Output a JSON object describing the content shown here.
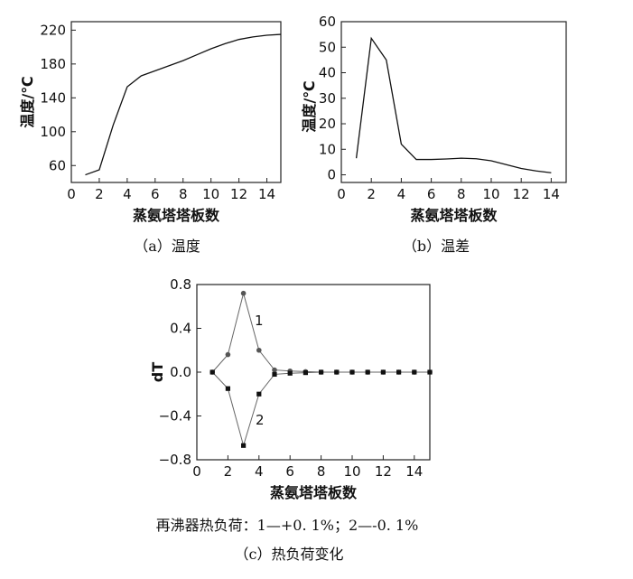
{
  "chart_data": [
    {
      "type": "line",
      "xlabel": "蒸氨塔塔板数",
      "ylabel": "温度/℃",
      "caption": "（a）温度",
      "xlim": [
        0,
        15
      ],
      "ylim": [
        40,
        230
      ],
      "xticks": [
        0,
        2,
        4,
        6,
        8,
        10,
        12,
        14
      ],
      "yticks": [
        60,
        100,
        140,
        180,
        220
      ],
      "x": [
        1,
        2,
        3,
        4,
        5,
        6,
        7,
        8,
        9,
        10,
        11,
        12,
        13,
        14,
        15
      ],
      "values": [
        49,
        55,
        108,
        153,
        166,
        172,
        178,
        184,
        191,
        198,
        204,
        209,
        212,
        214,
        215
      ]
    },
    {
      "type": "line",
      "xlabel": "蒸氨塔塔板数",
      "ylabel": "温度/℃",
      "caption": "（b）温差",
      "xlim": [
        0,
        15
      ],
      "ylim": [
        -3,
        60
      ],
      "xticks": [
        0,
        2,
        4,
        6,
        8,
        10,
        12,
        14
      ],
      "yticks": [
        0,
        10,
        20,
        30,
        40,
        50,
        60
      ],
      "x": [
        1,
        2,
        3,
        4,
        5,
        6,
        7,
        8,
        9,
        10,
        11,
        12,
        13,
        14
      ],
      "values": [
        6.5,
        53.5,
        45,
        12,
        6,
        6,
        6.2,
        6.5,
        6.3,
        5.5,
        4,
        2.5,
        1.5,
        0.8
      ]
    },
    {
      "type": "line",
      "xlabel": "蒸氨塔塔板数",
      "ylabel": "dT",
      "caption": "（c）热负荷变化",
      "subcaption": "再沸器热负荷：1—+0. 1%；2—-0. 1%",
      "xlim": [
        0,
        15
      ],
      "ylim": [
        -0.8,
        0.8
      ],
      "xticks": [
        0,
        2,
        4,
        6,
        8,
        10,
        12,
        14
      ],
      "yticks": [
        0.8,
        0.4,
        0.0,
        -0.4,
        -0.8
      ],
      "ytick_labels": [
        "0.8",
        "0.4",
        "0.0",
        "−0.4",
        "−0.8"
      ],
      "x": [
        1,
        2,
        3,
        4,
        5,
        6,
        7,
        8,
        9,
        10,
        11,
        12,
        13,
        14,
        15
      ],
      "series": [
        {
          "name": "1",
          "values": [
            0,
            0.16,
            0.72,
            0.2,
            0.02,
            0.01,
            0.005,
            0,
            0,
            0,
            0,
            0,
            0,
            0,
            0
          ]
        },
        {
          "name": "2",
          "values": [
            0,
            -0.15,
            -0.67,
            -0.2,
            -0.02,
            -0.01,
            -0.005,
            0,
            0,
            0,
            0,
            0,
            0,
            0,
            0
          ]
        }
      ]
    }
  ]
}
